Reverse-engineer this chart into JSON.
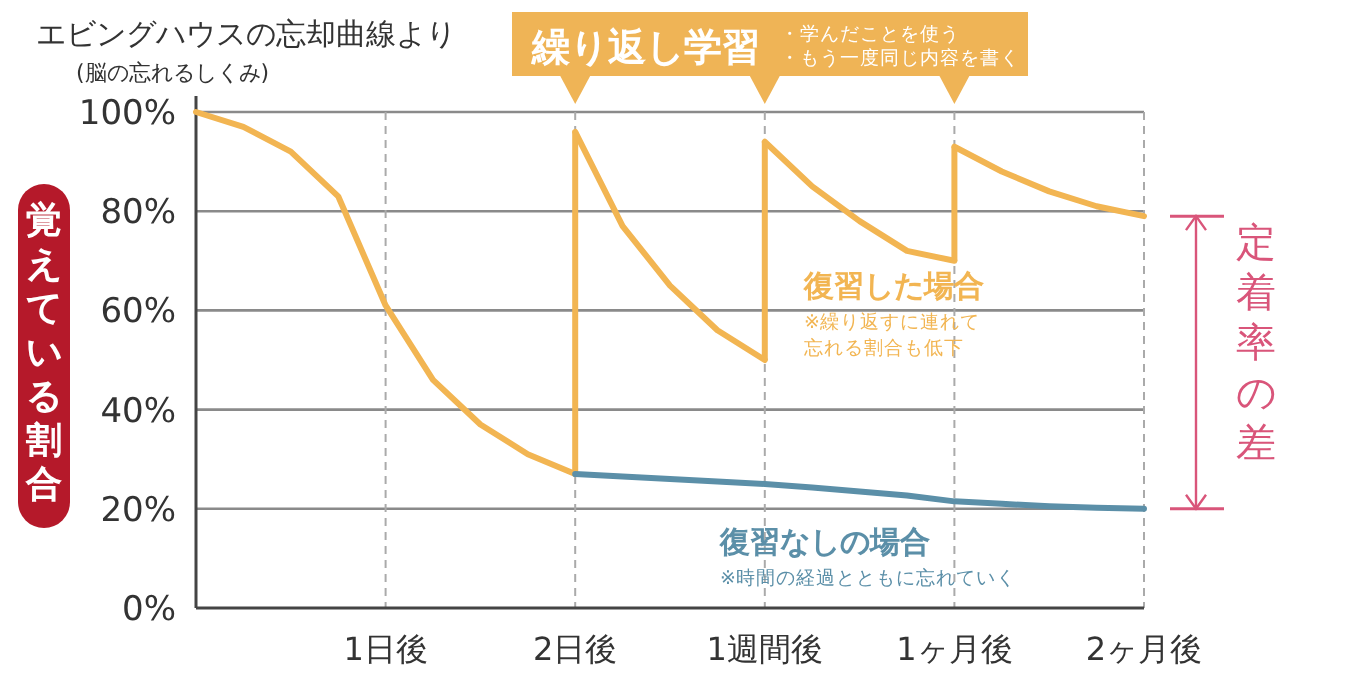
{
  "chart_data": {
    "type": "line",
    "title": "エビングハウスの忘却曲線より",
    "subtitle": "(脳の忘れるしくみ)",
    "ylabel": "覚えている割合",
    "categories": [
      null,
      null,
      null,
      null,
      "1日後",
      null,
      null,
      null,
      "2日後",
      null,
      null,
      null,
      "1週間後",
      null,
      null,
      null,
      "1ヶ月後",
      null,
      null,
      null,
      "2ヶ月後"
    ],
    "ylim": [
      0,
      100
    ],
    "yticks": [
      {
        "value": 0,
        "label": "0%"
      },
      {
        "value": 20,
        "label": "20%"
      },
      {
        "value": 40,
        "label": "40%"
      },
      {
        "value": 60,
        "label": "60%"
      },
      {
        "value": 80,
        "label": "80%"
      },
      {
        "value": 100,
        "label": "100%"
      }
    ],
    "grid": true,
    "series": [
      {
        "name": "復習した場合",
        "color": "#f2b552",
        "values": [
          100,
          97,
          92,
          83,
          61,
          46,
          37,
          31,
          27,
          null,
          null,
          null,
          null,
          null,
          null,
          null,
          null,
          null,
          null,
          null,
          null
        ]
      },
      {
        "color": "#f2b552",
        "values": [
          null,
          null,
          null,
          null,
          null,
          null,
          null,
          null,
          96,
          77,
          65,
          56,
          50,
          null,
          null,
          null,
          null,
          null,
          null,
          null,
          null
        ]
      },
      {
        "color": "#f2b552",
        "values": [
          null,
          null,
          null,
          null,
          null,
          null,
          null,
          null,
          null,
          null,
          null,
          null,
          94,
          85,
          78,
          72,
          70,
          null,
          null,
          null,
          null
        ]
      },
      {
        "color": "#f2b552",
        "values": [
          null,
          null,
          null,
          null,
          null,
          null,
          null,
          null,
          null,
          null,
          null,
          null,
          null,
          null,
          null,
          null,
          93,
          88,
          84,
          81,
          79
        ]
      },
      {
        "name": "復習なしの場合",
        "color": "#5b8fa8",
        "values": [
          null,
          null,
          null,
          null,
          null,
          null,
          null,
          null,
          27,
          26.5,
          26,
          25.5,
          25,
          24.3,
          23.5,
          22.7,
          21.5,
          21,
          20.5,
          20.2,
          20
        ]
      }
    ],
    "annotations": [
      "繰り返し学習",
      "・学んだことを使う",
      "・もう一度同じ内容を書く",
      "※繰り返すに連れて",
      "忘れる割合も低下",
      "※時間の経過とともに忘れていく",
      "定着率の差"
    ]
  }
}
